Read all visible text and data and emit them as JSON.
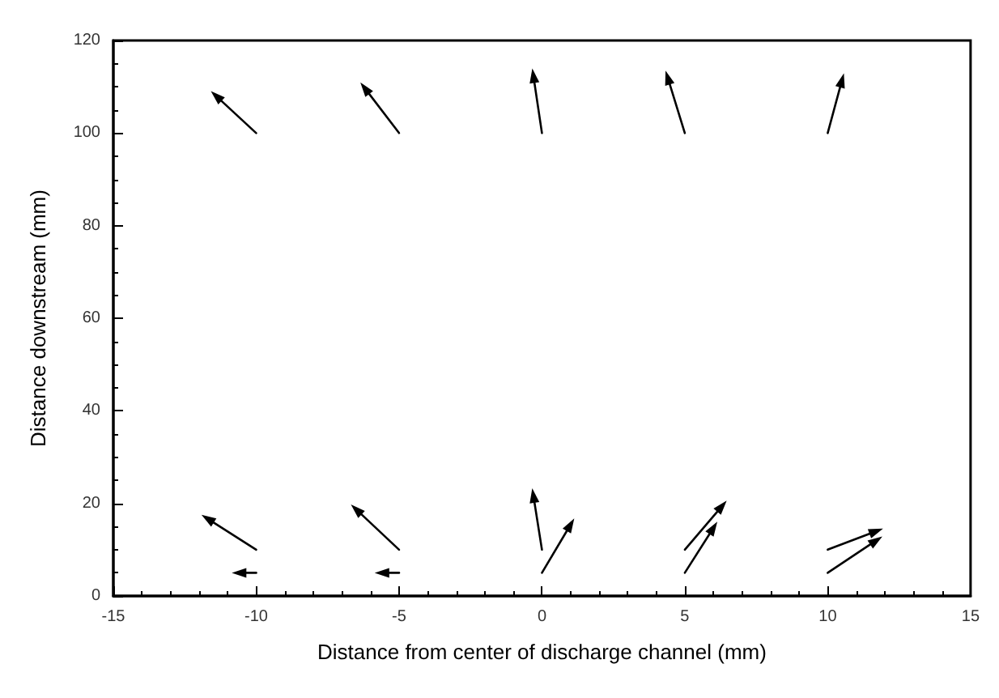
{
  "chart_data": {
    "type": "line",
    "xlabel": "Distance from center of discharge channel (mm)",
    "ylabel": "Distance downstream (mm)",
    "xlim": [
      -15,
      15
    ],
    "xticks": [
      -15,
      -10,
      -5,
      0,
      5,
      10,
      15
    ],
    "ylim": [
      0,
      120
    ],
    "yticks": [
      0,
      20,
      40,
      60,
      80,
      100,
      120
    ],
    "grid": false,
    "marker": "triangle",
    "series": [
      {
        "color": "#000000",
        "x": [
          -10,
          -11.4
        ],
        "values": [
          100,
          108
        ]
      },
      {
        "color": "#000000",
        "x": [
          -5,
          -6.2
        ],
        "values": [
          100,
          109.7
        ]
      },
      {
        "color": "#000000",
        "x": [
          0,
          -0.3
        ],
        "values": [
          100,
          112.4
        ]
      },
      {
        "color": "#000000",
        "x": [
          5,
          4.4
        ],
        "values": [
          100,
          112
        ]
      },
      {
        "color": "#000000",
        "x": [
          10,
          10.5
        ],
        "values": [
          100,
          111.4
        ]
      },
      {
        "color": "#000000",
        "x": [
          -10,
          -11.7
        ],
        "values": [
          10,
          16.7
        ]
      },
      {
        "color": "#000000",
        "x": [
          -5,
          -6.5
        ],
        "values": [
          10,
          18.7
        ]
      },
      {
        "color": "#000000",
        "x": [
          0,
          -0.3
        ],
        "values": [
          10,
          21.7
        ]
      },
      {
        "color": "#000000",
        "x": [
          0,
          1
        ],
        "values": [
          5,
          15.4
        ]
      },
      {
        "color": "#000000",
        "x": [
          5,
          6.3
        ],
        "values": [
          10,
          19.4
        ]
      },
      {
        "color": "#000000",
        "x": [
          5,
          6
        ],
        "values": [
          5,
          14.7
        ]
      },
      {
        "color": "#000000",
        "x": [
          10,
          11.7
        ],
        "values": [
          10,
          14
        ]
      },
      {
        "color": "#000000",
        "x": [
          10,
          11.7
        ],
        "values": [
          5,
          12
        ]
      },
      {
        "color": "#000000",
        "x": [
          -10,
          -10.6
        ],
        "values": [
          5,
          5
        ]
      },
      {
        "color": "#000000",
        "x": [
          -5,
          -5.6
        ],
        "values": [
          5,
          5
        ]
      }
    ]
  }
}
